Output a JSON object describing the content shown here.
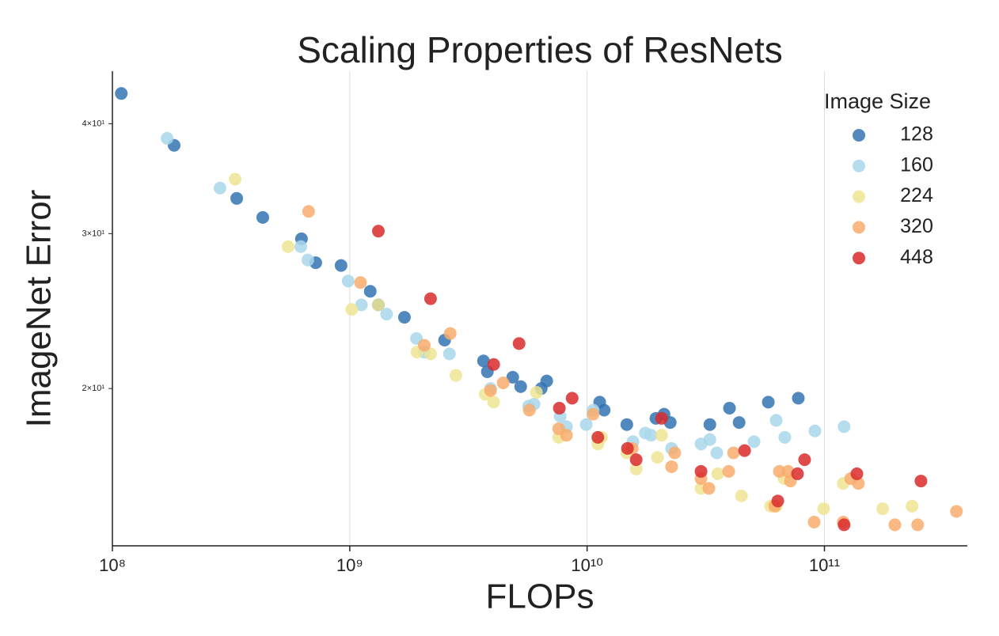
{
  "chart_data": {
    "type": "scatter",
    "title": "Scaling Properties of ResNets",
    "x_label": "FLOPs",
    "y_label": "ImageNet Error",
    "x_scale": "log",
    "y_scale": "log",
    "xlim": [
      100000000.0,
      400000000000.0
    ],
    "ylim": [
      13.25,
      45.9
    ],
    "xticks": [
      {
        "value": 100000000.0,
        "label": "10⁸"
      },
      {
        "value": 1000000000.0,
        "label": "10⁹"
      },
      {
        "value": 10000000000.0,
        "label": "10¹⁰"
      },
      {
        "value": 100000000000.0,
        "label": "10¹¹"
      }
    ],
    "yticks": [
      {
        "value": 20,
        "label": "2×10¹"
      },
      {
        "value": 30,
        "label": "3×10¹"
      },
      {
        "value": 40,
        "label": "4×10¹"
      }
    ],
    "grid": "x",
    "legend": "upper right",
    "legend_title": "Image Size",
    "series": [
      {
        "name": "128",
        "color": "#3274b3",
        "x": [
          109000000.0,
          182000000.0,
          334000000.0,
          430000000.0,
          626000000.0,
          719000000.0,
          919000000.0,
          1220000000.0,
          1320000000.0,
          1700000000.0,
          2510000000.0,
          3660000000.0,
          3800000000.0,
          4860000000.0,
          5250000000.0,
          6410000000.0,
          6760000000.0,
          11300000000.0,
          11800000000.0,
          14700000000.0,
          19500000000.0,
          21100000000.0,
          22400000000.0,
          32900000000.0,
          39800000000.0,
          43700000000.0,
          58000000000.0,
          77600000000.0
        ],
        "values": [
          43.3,
          37.8,
          32.9,
          31.3,
          29.6,
          27.8,
          27.6,
          25.8,
          24.9,
          24.1,
          22.7,
          21.5,
          20.9,
          20.6,
          20.1,
          20.0,
          20.4,
          19.3,
          18.9,
          18.2,
          18.5,
          18.7,
          18.3,
          18.2,
          19.0,
          18.3,
          19.3,
          19.5
        ]
      },
      {
        "name": "160",
        "color": "#a9d7ea",
        "x": [
          170000000.0,
          284000000.0,
          622000000.0,
          666000000.0,
          985000000.0,
          1120000000.0,
          1430000000.0,
          1910000000.0,
          2060000000.0,
          2630000000.0,
          3920000000.0,
          5670000000.0,
          5980000000.0,
          7700000000.0,
          8190000000.0,
          9920000000.0,
          10600000000.0,
          15600000000.0,
          17600000000.0,
          18600000000.0,
          22700000000.0,
          30200000000.0,
          32900000000.0,
          35200000000.0,
          50500000000.0,
          62600000000.0,
          68100000000.0,
          91200000000.0,
          121000000000.0
        ],
        "values": [
          38.5,
          33.8,
          29.0,
          28.0,
          26.5,
          24.9,
          24.3,
          22.8,
          22.0,
          21.9,
          20.0,
          19.1,
          19.2,
          18.6,
          18.1,
          18.2,
          18.9,
          17.4,
          17.8,
          17.7,
          17.1,
          17.3,
          17.5,
          16.9,
          17.4,
          18.4,
          17.6,
          17.9,
          18.1
        ]
      },
      {
        "name": "224",
        "color": "#efe593",
        "x": [
          329000000.0,
          550000000.0,
          1020000000.0,
          1320000000.0,
          1920000000.0,
          2190000000.0,
          2800000000.0,
          3720000000.0,
          4040000000.0,
          6120000000.0,
          7590000000.0,
          11100000000.0,
          11500000000.0,
          14700000000.0,
          16100000000.0,
          19800000000.0,
          20600000000.0,
          30200000000.0,
          35500000000.0,
          44700000000.0,
          59300000000.0,
          62600000000.0,
          67600000000.0,
          99200000000.0,
          120000000000.0,
          176000000000.0,
          234000000000.0
        ],
        "values": [
          34.6,
          29.0,
          24.6,
          24.9,
          22.0,
          21.9,
          20.7,
          19.7,
          19.3,
          19.8,
          17.6,
          17.3,
          17.6,
          16.9,
          16.2,
          16.7,
          17.7,
          15.4,
          16.0,
          15.1,
          14.7,
          14.7,
          15.8,
          14.6,
          15.6,
          14.6,
          14.7
        ]
      },
      {
        "name": "320",
        "color": "#f9ab6c",
        "x": [
          671000000.0,
          1110000000.0,
          2060000000.0,
          2650000000.0,
          3920000000.0,
          4430000000.0,
          5710000000.0,
          7590000000.0,
          8190000000.0,
          10600000000.0,
          15500000000.0,
          23400000000.0,
          22700000000.0,
          41400000000.0,
          39500000000.0,
          30200000000.0,
          32600000000.0,
          61700000000.0,
          64600000000.0,
          71900000000.0,
          70300000000.0,
          129000000000.0,
          139000000000.0,
          90500000000.0,
          120000000000.0,
          198000000000.0,
          247000000000.0,
          360000000000.0
        ],
        "values": [
          31.8,
          26.4,
          22.4,
          23.1,
          19.9,
          20.3,
          18.9,
          18.0,
          17.7,
          18.7,
          17.1,
          16.9,
          16.3,
          16.9,
          16.1,
          15.8,
          15.4,
          14.7,
          16.1,
          15.7,
          16.1,
          15.8,
          15.6,
          14.1,
          14.1,
          14.0,
          14.0,
          14.5
        ]
      },
      {
        "name": "448",
        "color": "#d92b2b",
        "x": [
          1320000000.0,
          2190000000.0,
          5170000000.0,
          4040000000.0,
          7640000000.0,
          8650000000.0,
          11100000000.0,
          14800000000.0,
          16100000000.0,
          20600000000.0,
          30200000000.0,
          46100000000.0,
          63600000000.0,
          77000000000.0,
          82500000000.0,
          137000000000.0,
          121000000000.0,
          255000000000.0
        ],
        "values": [
          30.2,
          25.3,
          22.5,
          21.3,
          19.0,
          19.5,
          17.6,
          17.1,
          16.6,
          18.5,
          16.1,
          17.0,
          14.9,
          16.0,
          16.6,
          16.0,
          14.0,
          15.7
        ]
      }
    ]
  }
}
